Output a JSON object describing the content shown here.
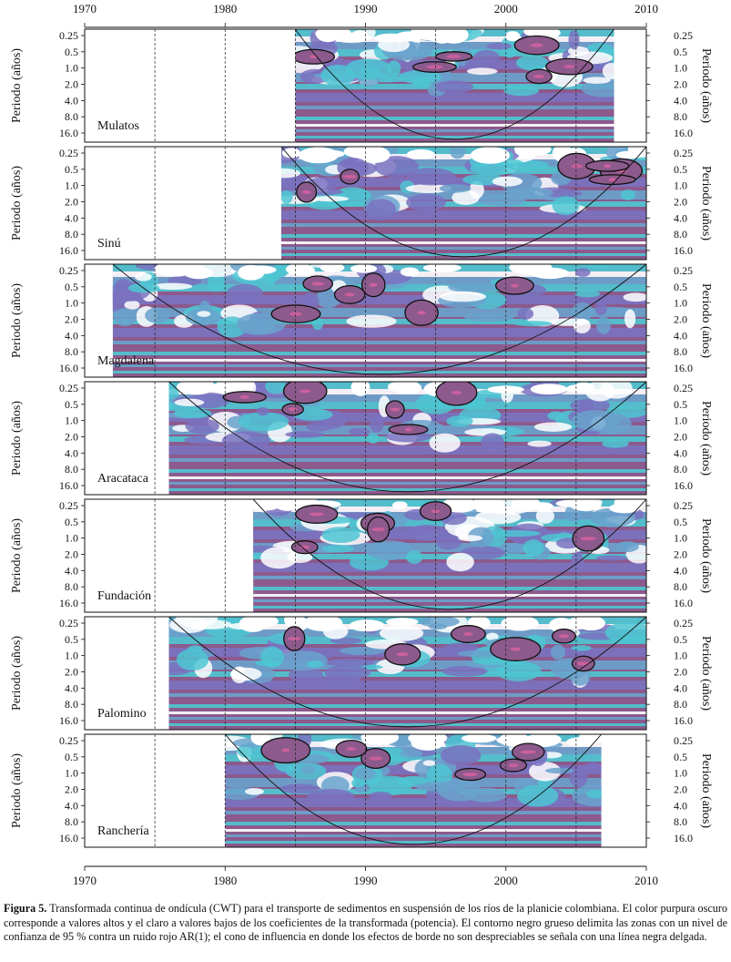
{
  "chart_data": {
    "type": "heatmap",
    "subtype": "wavelet-power-spectrum",
    "x_axis": {
      "range": [
        1970,
        2010
      ],
      "ticks": [
        1970,
        1980,
        1990,
        2000,
        2010
      ],
      "dashed_gridlines": [
        1975,
        1980,
        1985,
        1990,
        1995,
        2000,
        2005
      ]
    },
    "y_axis": {
      "label": "Periodo (años)",
      "ticks": [
        "0.25",
        "0.5",
        "1.0",
        "2.0",
        "4.0",
        "8.0",
        "16.0"
      ],
      "scale": "log2",
      "inverted": true
    },
    "colors": {
      "high": "#8c5a8c",
      "mid_high": "#7a72c0",
      "mid": "#6aa2cc",
      "mid_low": "#4ec6d2",
      "low": "#ffffff",
      "significance": "#d060a0"
    },
    "panels": [
      {
        "name": "Mulatos",
        "start": 1985.0,
        "end": 2007.7
      },
      {
        "name": "Sinú",
        "start": 1984.0,
        "end": 2010.0
      },
      {
        "name": "Magdalena",
        "start": 1972.0,
        "end": 2010.0
      },
      {
        "name": "Aracataca",
        "start": 1976.0,
        "end": 2010.0
      },
      {
        "name": "Fundación",
        "start": 1982.0,
        "end": 2010.0
      },
      {
        "name": "Palomino",
        "start": 1976.0,
        "end": 2010.0
      },
      {
        "name": "Ranchería",
        "start": 1980.0,
        "end": 2006.8
      }
    ]
  },
  "caption": {
    "label": "Figura 5.",
    "text": "Transformada continua de ondícula (CWT) para el transporte de sedimentos en suspensión de los ríos de la planicie colombiana. El color purpura oscuro corresponde a valores altos y el claro a valores bajos de los coeficientes de la transformada (potencia). El contorno negro grueso delimita las zonas con un nivel de confianza de 95 % contra un ruido rojo AR(1); el cono de influencia en donde los efectos de borde no son despreciables se señala con una línea negra delgada."
  }
}
